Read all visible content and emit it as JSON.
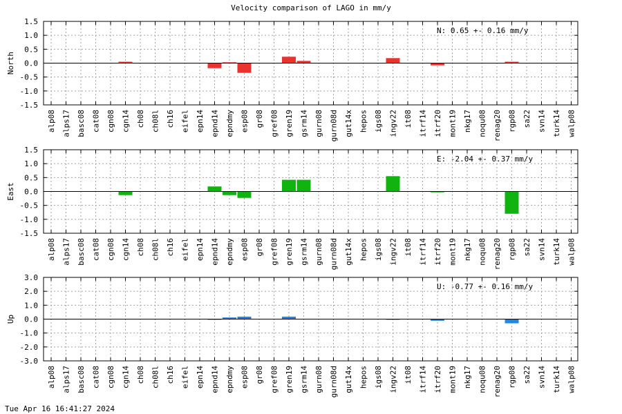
{
  "title": "Velocity comparison of LAGO in mm/y",
  "timestamp": "Tue Apr 16 16:41:27 2024",
  "chart_data": {
    "type": "bar",
    "grid": true,
    "categories": [
      "alp08",
      "alps17",
      "basc08",
      "cat08",
      "cgn08",
      "cgn14",
      "ch08",
      "ch08l",
      "ch16",
      "eifel",
      "epn14",
      "epnd14",
      "epndmy",
      "esp08",
      "gr08",
      "gref08",
      "gren19",
      "gsrm14",
      "gurn08",
      "gurn08d",
      "gut14x",
      "hepos",
      "igs08",
      "ingv22",
      "it08",
      "itrf14",
      "itrf20",
      "mont19",
      "nkg17",
      "noqu08",
      "renag20",
      "rgp08",
      "sa22",
      "svn14",
      "turk14",
      "walp08"
    ],
    "panels": [
      {
        "ylabel": "North",
        "ylim": [
          -1.5,
          1.5
        ],
        "yticks": [
          "1.5",
          "1.0",
          "0.5",
          "0.0",
          "-0.5",
          "-1.0",
          "-1.5"
        ],
        "tick_values": [
          1.5,
          1.0,
          0.5,
          0.0,
          -0.5,
          -1.0,
          -1.5
        ],
        "color": "#e8332f",
        "annotation": "N:   0.65 +-  0.16 mm/y",
        "values": [
          0,
          0,
          0,
          0,
          0,
          0.05,
          0,
          0,
          0,
          0,
          0,
          -0.18,
          0.03,
          -0.35,
          0,
          0,
          0.23,
          0.08,
          0,
          0,
          0,
          0,
          0,
          0.18,
          0,
          0,
          -0.08,
          0,
          0,
          0,
          0,
          0.05,
          0,
          0,
          0,
          0
        ]
      },
      {
        "ylabel": "East",
        "ylim": [
          -1.5,
          1.5
        ],
        "yticks": [
          "1.5",
          "1.0",
          "0.5",
          "0.0",
          "-0.5",
          "-1.0",
          "-1.5"
        ],
        "tick_values": [
          1.5,
          1.0,
          0.5,
          0.0,
          -0.5,
          -1.0,
          -1.5
        ],
        "color": "#11b311",
        "annotation": "E:  -2.04 +-  0.37 mm/y",
        "values": [
          0,
          0,
          0,
          0,
          0,
          -0.13,
          0,
          0,
          0,
          0,
          0,
          0.18,
          -0.13,
          -0.23,
          0,
          0,
          0.42,
          0.42,
          0,
          0,
          0,
          0,
          0,
          0.55,
          0,
          0,
          -0.03,
          0,
          0,
          0,
          0,
          -0.8,
          0,
          0,
          0,
          0
        ]
      },
      {
        "ylabel": "Up",
        "ylim": [
          -3.0,
          3.0
        ],
        "yticks": [
          "3.0",
          "2.0",
          "1.0",
          "0.0",
          "-1.0",
          "-2.0",
          "-3.0"
        ],
        "tick_values": [
          3.0,
          2.0,
          1.0,
          0.0,
          -1.0,
          -2.0,
          -3.0
        ],
        "color": "#1e88e8",
        "annotation": "U:  -0.77 +-  0.16 mm/y",
        "values": [
          0,
          0,
          0,
          0,
          0,
          0,
          0,
          0,
          0,
          0,
          0,
          -0.05,
          0.12,
          0.18,
          0,
          0,
          0.18,
          0,
          0,
          0,
          0,
          0,
          0,
          -0.05,
          0,
          0,
          -0.12,
          0,
          0,
          0,
          0,
          -0.3,
          0,
          0,
          0,
          0
        ]
      }
    ]
  }
}
